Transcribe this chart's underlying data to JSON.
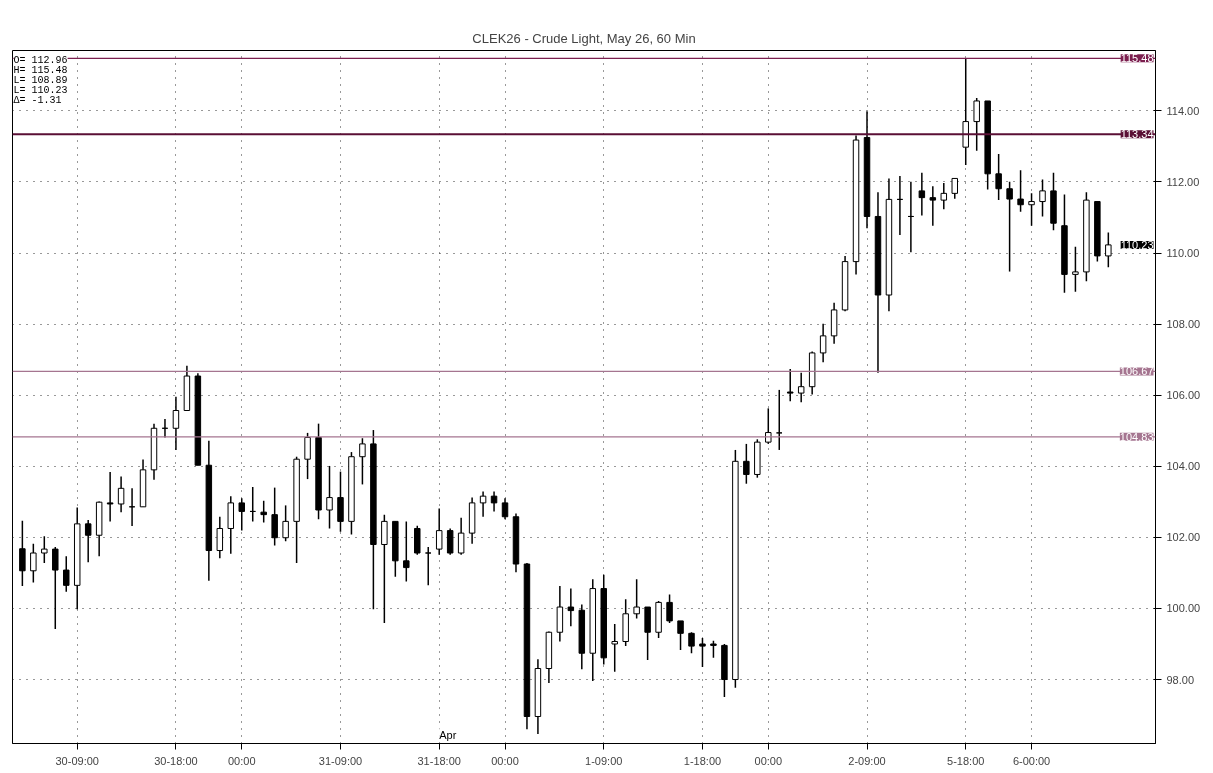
{
  "chart_data": {
    "type": "candlestick",
    "title": "CLEK26 - Crude Light, May 26, 60 Min",
    "color": "#000000",
    "categories": [
      null,
      null,
      null,
      null,
      null,
      "30-09:00",
      null,
      null,
      null,
      null,
      null,
      null,
      null,
      null,
      "30-18:00",
      null,
      null,
      null,
      null,
      null,
      "00:00",
      null,
      null,
      null,
      null,
      null,
      null,
      null,
      null,
      "31-09:00",
      null,
      null,
      null,
      null,
      null,
      null,
      null,
      null,
      "31-18:00",
      null,
      null,
      null,
      null,
      null,
      "00:00",
      null,
      null,
      null,
      null,
      null,
      null,
      null,
      null,
      "1-09:00",
      null,
      null,
      null,
      null,
      null,
      null,
      null,
      null,
      "1-18:00",
      null,
      null,
      null,
      null,
      null,
      "00:00",
      null,
      null,
      null,
      null,
      null,
      null,
      null,
      null,
      "2-09:00",
      null,
      null,
      null,
      null,
      null,
      null,
      null,
      null,
      "5-18:00",
      null,
      null,
      null,
      null,
      null,
      "6-00:00",
      null,
      null,
      null,
      null,
      null,
      null,
      null
    ],
    "ohlc": [
      [
        101.68,
        102.47,
        100.63,
        101.06
      ],
      [
        101.06,
        101.82,
        100.73,
        101.56
      ],
      [
        101.56,
        102.03,
        101.28,
        101.67
      ],
      [
        101.67,
        101.73,
        99.42,
        101.08
      ],
      [
        101.08,
        101.47,
        100.47,
        100.65
      ],
      [
        100.65,
        102.84,
        99.98,
        102.38
      ],
      [
        102.38,
        102.49,
        101.3,
        102.06
      ],
      [
        102.06,
        103.01,
        101.47,
        102.99
      ],
      [
        102.97,
        103.84,
        102.45,
        102.94
      ],
      [
        102.94,
        103.71,
        102.71,
        103.38
      ],
      [
        102.86,
        103.38,
        102.32,
        102.86
      ],
      [
        102.86,
        104.19,
        102.86,
        103.9
      ],
      [
        103.9,
        105.2,
        103.62,
        105.07
      ],
      [
        105.07,
        105.33,
        104.81,
        105.07
      ],
      [
        105.07,
        105.96,
        104.46,
        105.57
      ],
      [
        105.57,
        106.83,
        105.57,
        106.54
      ],
      [
        106.54,
        106.62,
        104.03,
        104.03
      ],
      [
        104.03,
        104.72,
        100.78,
        101.63
      ],
      [
        101.63,
        102.58,
        101.41,
        102.25
      ],
      [
        102.25,
        103.16,
        101.54,
        102.97
      ],
      [
        102.97,
        103.1,
        102.19,
        102.73
      ],
      [
        102.73,
        103.42,
        102.45,
        102.73
      ],
      [
        102.71,
        103.03,
        102.42,
        102.64
      ],
      [
        102.64,
        103.4,
        101.77,
        101.99
      ],
      [
        101.99,
        102.9,
        101.89,
        102.45
      ],
      [
        102.45,
        104.27,
        101.28,
        104.2
      ],
      [
        104.2,
        104.94,
        103.64,
        104.81
      ],
      [
        104.81,
        105.2,
        102.51,
        102.77
      ],
      [
        102.77,
        104.01,
        102.25,
        103.12
      ],
      [
        103.12,
        103.85,
        102.16,
        102.45
      ],
      [
        102.45,
        104.4,
        102.08,
        104.27
      ],
      [
        104.27,
        104.79,
        103.49,
        104.63
      ],
      [
        104.63,
        105.02,
        99.98,
        101.8
      ],
      [
        101.8,
        102.64,
        99.59,
        102.45
      ],
      [
        102.45,
        102.45,
        100.89,
        101.34
      ],
      [
        101.34,
        102.45,
        100.76,
        101.15
      ],
      [
        102.25,
        102.33,
        101.51,
        101.56
      ],
      [
        101.56,
        101.73,
        100.65,
        101.56
      ],
      [
        101.67,
        102.81,
        101.51,
        102.19
      ],
      [
        102.19,
        102.25,
        101.51,
        101.56
      ],
      [
        101.56,
        102.55,
        101.51,
        102.12
      ],
      [
        102.12,
        103.12,
        101.82,
        102.97
      ],
      [
        102.97,
        103.29,
        102.58,
        103.16
      ],
      [
        103.16,
        103.29,
        102.73,
        102.97
      ],
      [
        102.97,
        103.1,
        102.51,
        102.58
      ],
      [
        102.58,
        102.67,
        101.02,
        101.25
      ],
      [
        101.25,
        101.28,
        96.6,
        96.96
      ],
      [
        96.96,
        98.57,
        96.47,
        98.31
      ],
      [
        98.31,
        99.35,
        97.9,
        99.33
      ],
      [
        99.33,
        100.63,
        99.07,
        100.04
      ],
      [
        100.04,
        100.56,
        99.5,
        99.94
      ],
      [
        99.95,
        100.11,
        98.29,
        98.74
      ],
      [
        98.74,
        100.82,
        97.96,
        100.56
      ],
      [
        100.56,
        100.95,
        98.42,
        98.61
      ],
      [
        99.0,
        99.56,
        98.22,
        99.07
      ],
      [
        99.07,
        100.26,
        98.94,
        99.85
      ],
      [
        99.85,
        100.82,
        99.72,
        100.04
      ],
      [
        100.04,
        100.04,
        98.55,
        99.33
      ],
      [
        99.33,
        100.21,
        99.17,
        100.17
      ],
      [
        100.17,
        100.39,
        99.59,
        99.65
      ],
      [
        99.65,
        99.65,
        98.83,
        99.3
      ],
      [
        99.3,
        99.33,
        98.74,
        98.94
      ],
      [
        99.0,
        99.17,
        98.35,
        98.94
      ],
      [
        99.0,
        99.09,
        98.61,
        98.96
      ],
      [
        98.96,
        99.0,
        97.51,
        98.0
      ],
      [
        98.0,
        104.46,
        97.77,
        104.14
      ],
      [
        104.14,
        104.63,
        103.51,
        103.77
      ],
      [
        103.77,
        104.76,
        103.68,
        104.68
      ],
      [
        104.68,
        105.63,
        104.63,
        104.95
      ],
      [
        104.94,
        106.15,
        104.46,
        104.94
      ],
      [
        106.09,
        106.74,
        105.83,
        106.06
      ],
      [
        106.06,
        106.63,
        105.8,
        106.24
      ],
      [
        106.24,
        107.23,
        106.02,
        107.19
      ],
      [
        107.19,
        108.01,
        106.93,
        107.67
      ],
      [
        107.67,
        108.6,
        107.45,
        108.4
      ],
      [
        108.4,
        109.92,
        108.36,
        109.76
      ],
      [
        109.76,
        113.31,
        109.4,
        113.18
      ],
      [
        113.25,
        113.99,
        110.7,
        111.03
      ],
      [
        111.03,
        111.71,
        106.63,
        108.82
      ],
      [
        108.82,
        112.1,
        108.36,
        111.51
      ],
      [
        111.51,
        112.17,
        110.51,
        111.51
      ],
      [
        111.03,
        112.01,
        110.02,
        111.03
      ],
      [
        111.75,
        112.26,
        111.06,
        111.56
      ],
      [
        111.56,
        111.88,
        110.77,
        111.49
      ],
      [
        111.49,
        111.97,
        111.23,
        111.68
      ],
      [
        111.68,
        112.1,
        111.53,
        112.1
      ],
      [
        112.98,
        115.48,
        112.48,
        113.7
      ],
      [
        113.7,
        114.36,
        112.88,
        114.28
      ],
      [
        114.28,
        114.28,
        111.79,
        112.23
      ],
      [
        112.23,
        112.79,
        111.49,
        111.81
      ],
      [
        111.81,
        112.01,
        109.48,
        111.52
      ],
      [
        111.52,
        112.33,
        111.16,
        111.36
      ],
      [
        111.36,
        111.68,
        110.77,
        111.45
      ],
      [
        111.45,
        112.07,
        111.03,
        111.75
      ],
      [
        111.75,
        112.26,
        110.64,
        110.84
      ],
      [
        110.77,
        111.65,
        108.88,
        109.4
      ],
      [
        109.4,
        110.18,
        108.91,
        109.47
      ],
      [
        109.47,
        111.71,
        109.21,
        111.49
      ],
      [
        111.45,
        111.45,
        109.76,
        109.92
      ],
      [
        109.92,
        110.58,
        109.6,
        110.23
      ]
    ],
    "ylim": [
      96.2,
      115.7
    ],
    "yticks": [
      {
        "value": 98,
        "label": "98.00"
      },
      {
        "value": 100,
        "label": "100.00"
      },
      {
        "value": 102,
        "label": "102.00"
      },
      {
        "value": 104,
        "label": "104.00"
      },
      {
        "value": 106,
        "label": "106.00"
      },
      {
        "value": 108,
        "label": "108.00"
      },
      {
        "value": 110,
        "label": "110.00"
      },
      {
        "value": 112,
        "label": "112.00"
      },
      {
        "value": 114,
        "label": "114.00"
      }
    ],
    "grid": true,
    "ref_lines": [
      {
        "axis": "y",
        "value": 115.48,
        "label": "115.48",
        "color": "#7b1f4f"
      },
      {
        "axis": "y",
        "value": 113.34,
        "label": "113.34",
        "color": "#5a0f35"
      },
      {
        "axis": "y",
        "value": 106.67,
        "label": "106.67",
        "color": "#a57590"
      },
      {
        "axis": "y",
        "value": 104.83,
        "label": "104.83",
        "color": "#a57590"
      }
    ],
    "annotations": [
      "O= 112.96",
      "H= 115.48",
      "L= 108.89",
      "L= 110.23",
      "Δ=   -1.31",
      "Apr",
      "110.23"
    ]
  }
}
